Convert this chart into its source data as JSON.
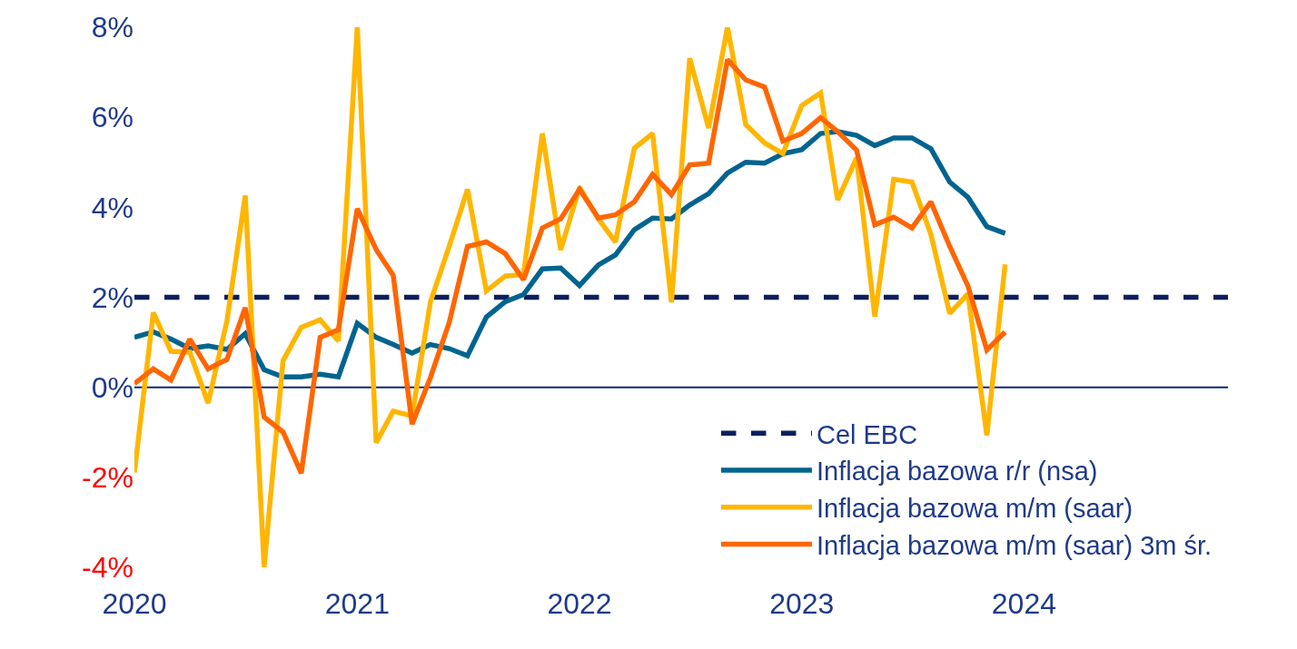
{
  "chart_data": {
    "type": "line",
    "x": [
      "2020-01",
      "2020-02",
      "2020-03",
      "2020-04",
      "2020-05",
      "2020-06",
      "2020-07",
      "2020-08",
      "2020-09",
      "2020-10",
      "2020-11",
      "2020-12",
      "2021-01",
      "2021-02",
      "2021-03",
      "2021-04",
      "2021-05",
      "2021-06",
      "2021-07",
      "2021-08",
      "2021-09",
      "2021-10",
      "2021-11",
      "2021-12",
      "2022-01",
      "2022-02",
      "2022-03",
      "2022-04",
      "2022-05",
      "2022-06",
      "2022-07",
      "2022-08",
      "2022-09",
      "2022-10",
      "2022-11",
      "2022-12",
      "2023-01",
      "2023-02",
      "2023-03",
      "2023-04",
      "2023-05",
      "2023-06",
      "2023-07",
      "2023-08",
      "2023-09",
      "2023-10",
      "2023-11",
      "2023-12"
    ],
    "series": [
      {
        "name": "Cel EBC",
        "color": "#0b1f5e",
        "x": [
          "2020-01",
          "2024-12"
        ],
        "values": [
          2,
          2
        ],
        "line_style": "dashed"
      },
      {
        "name": "Inflacja bazowa r/r (nsa)",
        "color": "#00648f",
        "values": [
          1.11,
          1.23,
          1.07,
          0.86,
          0.92,
          0.84,
          1.19,
          0.39,
          0.23,
          0.23,
          0.29,
          0.23,
          1.42,
          1.11,
          0.95,
          0.76,
          0.95,
          0.86,
          0.7,
          1.56,
          1.9,
          2.06,
          2.63,
          2.65,
          2.26,
          2.72,
          2.94,
          3.5,
          3.76,
          3.74,
          4.05,
          4.3,
          4.76,
          5.0,
          4.98,
          5.19,
          5.28,
          5.64,
          5.68,
          5.6,
          5.37,
          5.54,
          5.54,
          5.3,
          4.56,
          4.22,
          3.57,
          3.42
        ]
      },
      {
        "name": "Inflacja bazowa m/m (saar)",
        "color": "#ffb600",
        "values": [
          -1.89,
          1.66,
          0.8,
          0.78,
          -0.35,
          1.48,
          4.26,
          -4,
          0.59,
          1.33,
          1.5,
          1.03,
          8,
          -1.23,
          -0.53,
          -0.64,
          1.89,
          3.13,
          4.4,
          2.14,
          2.47,
          2.51,
          5.64,
          3.05,
          4.44,
          3.74,
          3.23,
          5.31,
          5.64,
          1.89,
          7.31,
          5.76,
          8,
          5.84,
          5.43,
          5.19,
          6.26,
          6.54,
          4.16,
          5.1,
          1.57,
          4.62,
          4.56,
          3.4,
          1.64,
          2.08,
          -1.07,
          2.73
        ]
      },
      {
        "name": "Inflacja bazowa m/m (saar) 3m śr.",
        "color": "#ff6600",
        "values": [
          0.08,
          0.41,
          0.16,
          1.07,
          0.41,
          0.62,
          1.77,
          -0.66,
          -0.99,
          -1.91,
          1.11,
          1.28,
          3.97,
          3.06,
          2.49,
          -0.82,
          0.21,
          1.44,
          3.13,
          3.23,
          2.97,
          2.39,
          3.54,
          3.74,
          4.4,
          3.76,
          3.83,
          4.12,
          4.73,
          4.28,
          4.94,
          4.98,
          7.28,
          6.83,
          6.67,
          5.47,
          5.64,
          5.99,
          5.68,
          5.27,
          3.61,
          3.78,
          3.54,
          4.12,
          3.13,
          2.25,
          0.83,
          1.23
        ]
      }
    ],
    "xlim": [
      "2020-01",
      "2024-12"
    ],
    "xticks": [
      {
        "value": "2020-01",
        "label": "2020"
      },
      {
        "value": "2021-01",
        "label": "2021"
      },
      {
        "value": "2022-01",
        "label": "2022"
      },
      {
        "value": "2023-01",
        "label": "2023"
      },
      {
        "value": "2024-01",
        "label": "2024"
      }
    ],
    "ylim": [
      -4,
      8
    ],
    "yticks": [
      {
        "value": -4,
        "label": "-4%"
      },
      {
        "value": -2,
        "label": "-2%"
      },
      {
        "value": 0,
        "label": "0%"
      },
      {
        "value": 2,
        "label": "2%"
      },
      {
        "value": 4,
        "label": "4%"
      },
      {
        "value": 6,
        "label": "6%"
      },
      {
        "value": 8,
        "label": "8%"
      }
    ],
    "ref_lines": [
      {
        "axis": "y",
        "value": 0,
        "color": "#0b2a7a",
        "line_style": "solid"
      }
    ],
    "legend": "bottom right",
    "line_style": "solid",
    "marker": "none"
  }
}
